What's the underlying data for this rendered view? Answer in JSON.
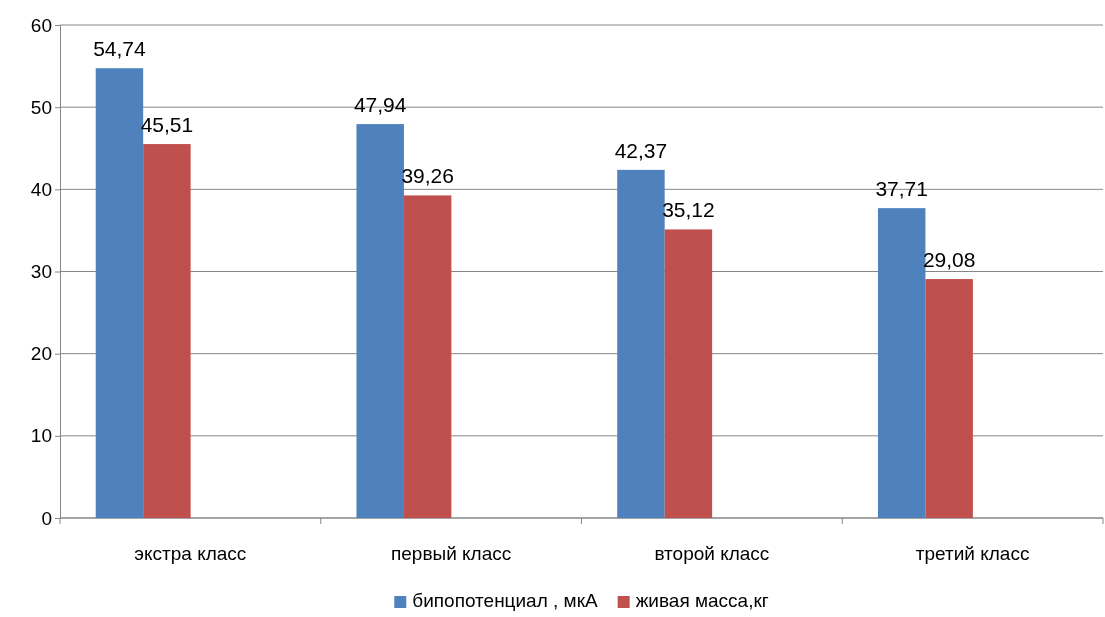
{
  "chart_data": {
    "type": "bar",
    "categories": [
      "экстра класс",
      "первый класс",
      "второй класс",
      "третий класс"
    ],
    "series": [
      {
        "name": "бипопотенциал , мкА",
        "color": "#4f81bd",
        "values": [
          54.74,
          47.94,
          42.37,
          37.71
        ],
        "value_labels": [
          "54,74",
          "47,94",
          "42,37",
          "37,71"
        ]
      },
      {
        "name": "живая масса,кг",
        "color": "#c0504d",
        "values": [
          45.51,
          39.26,
          35.12,
          29.08
        ],
        "value_labels": [
          "45,51",
          "39,26",
          "35,12",
          "29,08"
        ]
      }
    ],
    "ylim": [
      0,
      60
    ],
    "yticks": [
      0,
      10,
      20,
      30,
      40,
      50,
      60
    ],
    "grid": "y",
    "legend": "bottom"
  }
}
